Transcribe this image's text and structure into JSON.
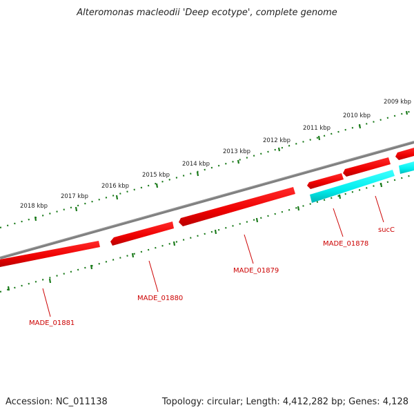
{
  "title": "Alteromonas macleodii 'Deep ecotype', complete genome",
  "footer": {
    "accession": "Accession: NC_011138",
    "summary": "Topology: circular; Length: 4,412,282 bp; Genes: 4,128"
  },
  "scale_labels": [
    "2009 kbp",
    "2010 kbp",
    "2011 kbp",
    "2012 kbp",
    "2013 kbp",
    "2014 kbp",
    "2015 kbp",
    "2016 kbp",
    "2017 kbp",
    "2018 kbp"
  ],
  "gene_labels": [
    "MADE_01881",
    "MADE_01880",
    "MADE_01879",
    "MADE_01878",
    "sucC"
  ],
  "colors": {
    "backbone": "#808080",
    "gene_red": "#ff0000",
    "gene_cyan": "#00ffff",
    "label_red": "#cc0000",
    "tick_green": "#1a7a1a"
  }
}
